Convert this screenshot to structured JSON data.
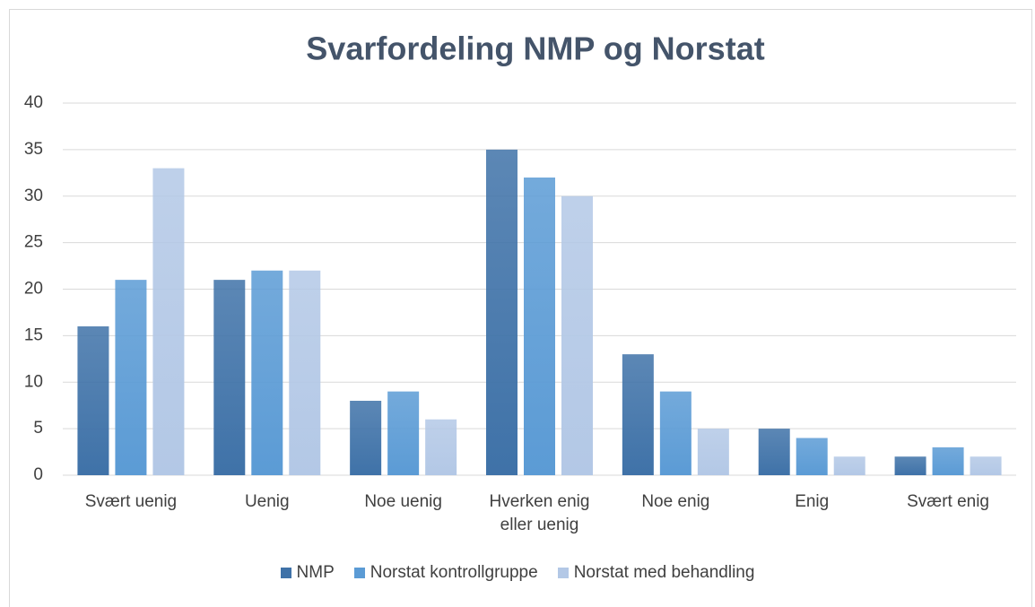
{
  "chart_data": {
    "type": "bar",
    "title": "Svarfordeling NMP og Norstat",
    "categories": [
      "Svært uenig",
      "Uenig",
      "Noe uenig",
      "Hverken enig eller uenig",
      "Noe enig",
      "Enig",
      "Svært enig"
    ],
    "series": [
      {
        "name": "NMP",
        "color": "#3f72a8",
        "values": [
          16,
          21,
          8,
          35,
          13,
          5,
          2
        ]
      },
      {
        "name": "Norstat kontrollgruppe",
        "color": "#5b9bd5",
        "values": [
          21,
          22,
          9,
          32,
          9,
          4,
          3
        ]
      },
      {
        "name": "Norstat med behandling",
        "color": "#b3c8e6",
        "values": [
          33,
          22,
          6,
          30,
          5,
          2,
          2
        ]
      }
    ],
    "ylim": [
      0,
      40
    ],
    "yticks": [
      0,
      5,
      10,
      15,
      20,
      25,
      30,
      35,
      40
    ],
    "grid": true,
    "legend": "bottom"
  }
}
